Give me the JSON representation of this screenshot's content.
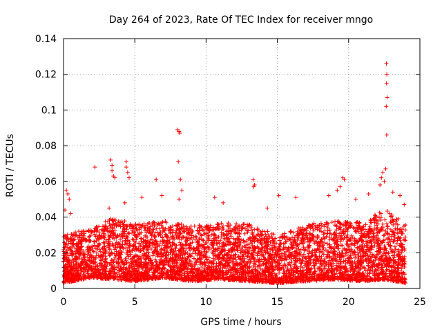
{
  "chart_data": {
    "type": "scatter",
    "title": "Day 264 of 2023, Rate Of TEC Index for receiver mngo",
    "xlabel": "GPS time / hours",
    "ylabel": "ROTI / TECUs",
    "xlim": [
      0,
      25
    ],
    "ylim": [
      0,
      0.14
    ],
    "xticks": [
      0,
      5,
      10,
      15,
      20,
      25
    ],
    "yticks": [
      0,
      0.02,
      0.04,
      0.06,
      0.08,
      0.1,
      0.12,
      0.14
    ],
    "xtick_labels": [
      "0",
      "5",
      "10",
      "15",
      "20",
      "25"
    ],
    "ytick_labels": [
      "0",
      "0.02",
      "0.04",
      "0.06",
      "0.08",
      "0.1",
      "0.12",
      "0.14"
    ],
    "grid": true,
    "marker": "+",
    "color": "#ff0000",
    "series": [
      {
        "name": "ROTI",
        "points": [
          [
            0.2,
            0.055
          ],
          [
            0.3,
            0.053
          ],
          [
            0.4,
            0.05
          ],
          [
            0.1,
            0.044
          ],
          [
            0.5,
            0.042
          ],
          [
            2.2,
            0.068
          ],
          [
            3.3,
            0.072
          ],
          [
            3.4,
            0.069
          ],
          [
            3.4,
            0.066
          ],
          [
            3.5,
            0.063
          ],
          [
            3.6,
            0.062
          ],
          [
            3.2,
            0.045
          ],
          [
            4.4,
            0.071
          ],
          [
            4.4,
            0.068
          ],
          [
            4.5,
            0.065
          ],
          [
            4.6,
            0.062
          ],
          [
            4.3,
            0.048
          ],
          [
            6.5,
            0.061
          ],
          [
            6.9,
            0.052
          ],
          [
            5.5,
            0.051
          ],
          [
            8.0,
            0.089
          ],
          [
            8.1,
            0.088
          ],
          [
            8.15,
            0.087
          ],
          [
            8.05,
            0.071
          ],
          [
            8.2,
            0.061
          ],
          [
            8.3,
            0.055
          ],
          [
            8.1,
            0.05
          ],
          [
            10.6,
            0.051
          ],
          [
            11.2,
            0.048
          ],
          [
            13.3,
            0.061
          ],
          [
            13.4,
            0.058
          ],
          [
            13.35,
            0.057
          ],
          [
            14.3,
            0.045
          ],
          [
            15.1,
            0.052
          ],
          [
            16.3,
            0.051
          ],
          [
            18.6,
            0.052
          ],
          [
            19.6,
            0.062
          ],
          [
            19.7,
            0.061
          ],
          [
            19.4,
            0.057
          ],
          [
            19.2,
            0.055
          ],
          [
            20.5,
            0.05
          ],
          [
            21.4,
            0.053
          ],
          [
            22.2,
            0.058
          ],
          [
            22.3,
            0.062
          ],
          [
            22.4,
            0.065
          ],
          [
            22.5,
            0.06
          ],
          [
            22.6,
            0.067
          ],
          [
            22.65,
            0.126
          ],
          [
            22.68,
            0.12
          ],
          [
            22.66,
            0.115
          ],
          [
            22.7,
            0.107
          ],
          [
            22.64,
            0.102
          ],
          [
            22.67,
            0.086
          ],
          [
            23.1,
            0.054
          ],
          [
            23.6,
            0.052
          ],
          [
            23.9,
            0.047
          ]
        ]
      }
    ],
    "band": {
      "x_start": 0.0,
      "x_end": 24.0,
      "profile": [
        {
          "x": 0.0,
          "lo": 0.003,
          "hi": 0.03
        },
        {
          "x": 2.0,
          "lo": 0.006,
          "hi": 0.034
        },
        {
          "x": 3.5,
          "lo": 0.005,
          "hi": 0.04
        },
        {
          "x": 5.0,
          "lo": 0.004,
          "hi": 0.036
        },
        {
          "x": 7.0,
          "lo": 0.006,
          "hi": 0.038
        },
        {
          "x": 9.0,
          "lo": 0.004,
          "hi": 0.035
        },
        {
          "x": 11.0,
          "lo": 0.005,
          "hi": 0.037
        },
        {
          "x": 13.0,
          "lo": 0.004,
          "hi": 0.036
        },
        {
          "x": 15.0,
          "lo": 0.003,
          "hi": 0.03
        },
        {
          "x": 17.0,
          "lo": 0.004,
          "hi": 0.036
        },
        {
          "x": 19.0,
          "lo": 0.005,
          "hi": 0.038
        },
        {
          "x": 21.0,
          "lo": 0.004,
          "hi": 0.037
        },
        {
          "x": 22.5,
          "lo": 0.005,
          "hi": 0.045
        },
        {
          "x": 24.0,
          "lo": 0.003,
          "hi": 0.036
        }
      ],
      "density_per_hour": 220,
      "seed": 264
    }
  }
}
